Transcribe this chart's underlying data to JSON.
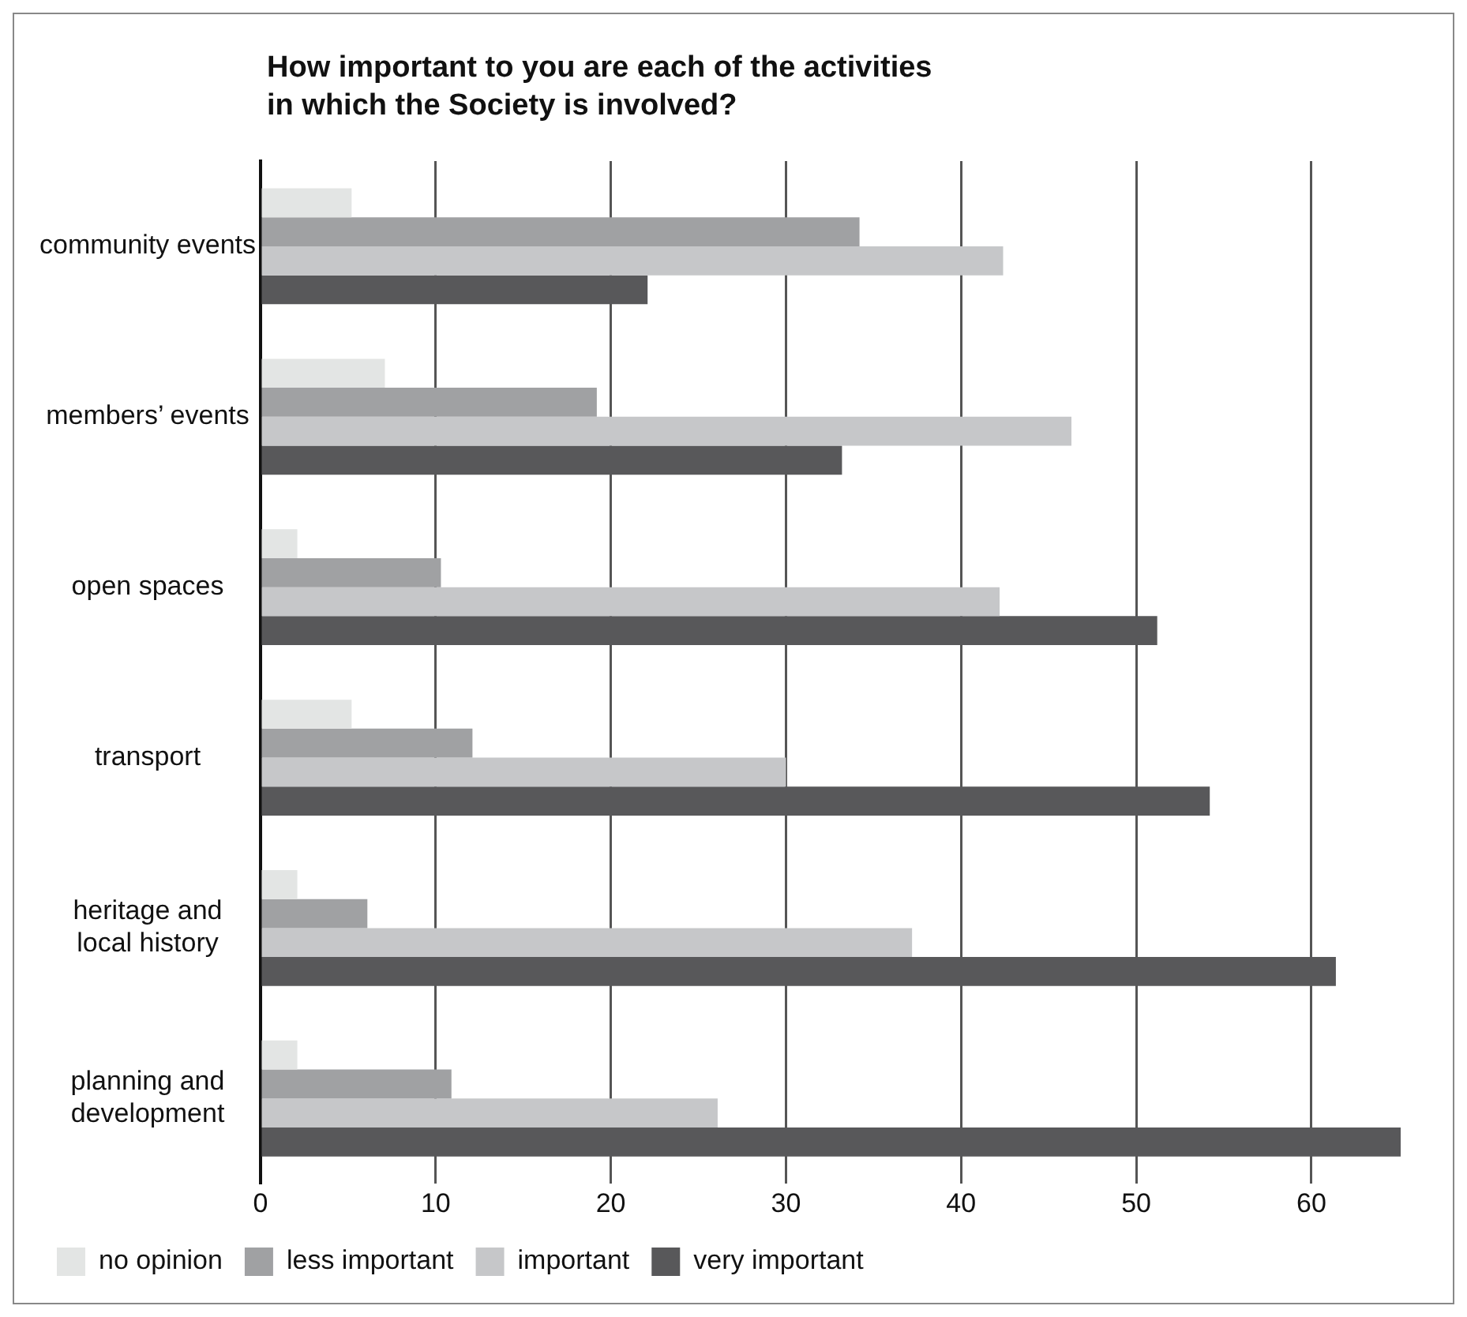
{
  "chart_data": {
    "type": "bar",
    "orientation": "horizontal",
    "title": "How important to you are each of the activities in which the Society is involved?",
    "categories": [
      "community events",
      "members’ events",
      "open spaces",
      "transport",
      "heritage and local history",
      "planning and development"
    ],
    "series": [
      {
        "name": "no opinion",
        "color": "#e3e5e4",
        "values": [
          5.2,
          7.1,
          2.1,
          5.2,
          2.1,
          2.1
        ]
      },
      {
        "name": "less important",
        "color": "#a0a1a3",
        "values": [
          34.2,
          19.2,
          10.3,
          12.1,
          6.1,
          10.9
        ]
      },
      {
        "name": "important",
        "color": "#c6c7c9",
        "values": [
          42.4,
          46.3,
          42.2,
          30.0,
          37.2,
          26.1
        ]
      },
      {
        "name": "very important",
        "color": "#58585a",
        "values": [
          22.1,
          33.2,
          51.2,
          54.2,
          61.4,
          65.1
        ]
      }
    ],
    "xlim": [
      0,
      65.1
    ],
    "xticks": [
      0,
      10,
      20,
      30,
      40,
      50,
      60
    ],
    "grid": "x",
    "legend": "bottom"
  }
}
